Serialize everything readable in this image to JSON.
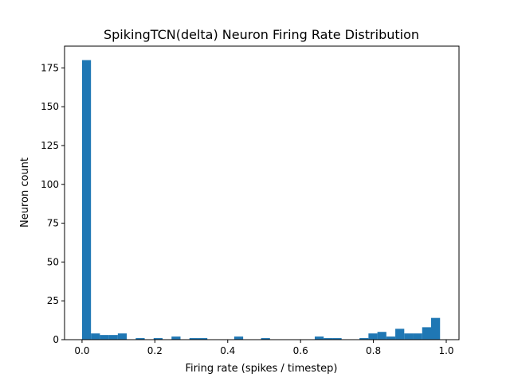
{
  "chart_data": {
    "type": "bar",
    "subtype": "histogram",
    "title": "SpikingTCN(delta) Neuron Firing Rate Distribution",
    "xlabel": "Firing rate (spikes / timestep)",
    "ylabel": "Neuron count",
    "bin_range": [
      0.0,
      0.983
    ],
    "bins": 40,
    "counts": [
      180,
      4,
      3,
      3,
      4,
      0,
      1,
      0,
      1,
      0,
      2,
      0,
      1,
      1,
      0,
      0,
      0,
      2,
      0,
      0,
      1,
      0,
      0,
      0,
      0,
      0,
      2,
      1,
      1,
      0,
      0,
      1,
      4,
      5,
      2,
      7,
      4,
      4,
      8,
      14
    ],
    "xlim": [
      -0.048,
      1.035
    ],
    "ylim": [
      0,
      189
    ],
    "xticks": [
      "0.0",
      "0.2",
      "0.4",
      "0.6",
      "0.8",
      "1.0"
    ],
    "xtick_values": [
      0,
      0.2,
      0.4,
      0.6,
      0.8,
      1.0
    ],
    "yticks": [
      "0",
      "25",
      "50",
      "75",
      "100",
      "125",
      "150",
      "175"
    ],
    "ytick_values": [
      0,
      25,
      50,
      75,
      100,
      125,
      150,
      175
    ],
    "grid": false,
    "bar_color": "#1f77b4"
  }
}
